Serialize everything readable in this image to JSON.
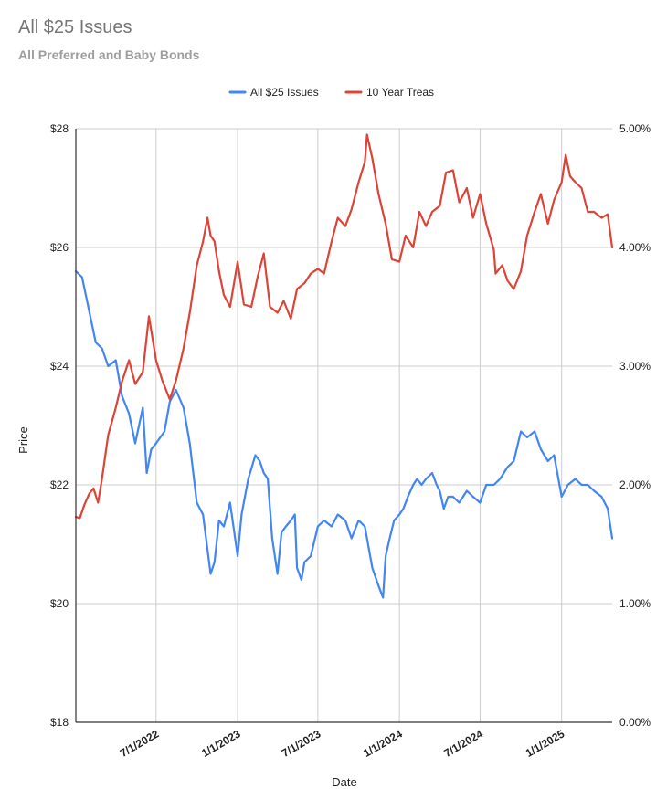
{
  "chart_data": {
    "type": "line",
    "title": "All $25 Issues",
    "subtitle": "All Preferred and Baby Bonds",
    "xlabel": "Date",
    "ylabel": "Price",
    "y2label": "",
    "xlim": [
      "2022-01-01",
      "2025-04-25"
    ],
    "ylim": [
      18,
      28
    ],
    "y2lim": [
      0,
      5
    ],
    "x_ticks": [
      "7/1/2022",
      "1/1/2023",
      "7/1/2023",
      "1/1/2024",
      "7/1/2024",
      "1/1/2025"
    ],
    "x_tick_dates": [
      "2022-07-01",
      "2023-01-01",
      "2023-07-01",
      "2024-01-01",
      "2024-07-01",
      "2025-01-01"
    ],
    "y_ticks": [
      "$18",
      "$20",
      "$22",
      "$24",
      "$26",
      "$28"
    ],
    "y_tick_values": [
      18,
      20,
      22,
      24,
      26,
      28
    ],
    "y2_ticks": [
      "0.00%",
      "1.00%",
      "2.00%",
      "3.00%",
      "4.00%",
      "5.00%"
    ],
    "y2_tick_values": [
      0,
      1,
      2,
      3,
      4,
      5
    ],
    "grid": true,
    "legend_position": "top-center",
    "series": [
      {
        "name": "All $25 Issues",
        "color": "#4285f4",
        "axis": "left",
        "points": [
          [
            "2022-01-01",
            25.6
          ],
          [
            "2022-01-15",
            25.5
          ],
          [
            "2022-02-01",
            24.9
          ],
          [
            "2022-02-15",
            24.4
          ],
          [
            "2022-03-01",
            24.3
          ],
          [
            "2022-03-15",
            24.0
          ],
          [
            "2022-04-01",
            24.1
          ],
          [
            "2022-04-15",
            23.5
          ],
          [
            "2022-05-01",
            23.2
          ],
          [
            "2022-05-15",
            22.7
          ],
          [
            "2022-06-01",
            23.3
          ],
          [
            "2022-06-10",
            22.2
          ],
          [
            "2022-06-20",
            22.6
          ],
          [
            "2022-07-01",
            22.7
          ],
          [
            "2022-07-20",
            22.9
          ],
          [
            "2022-08-01",
            23.4
          ],
          [
            "2022-08-15",
            23.6
          ],
          [
            "2022-09-01",
            23.3
          ],
          [
            "2022-09-15",
            22.7
          ],
          [
            "2022-10-01",
            21.7
          ],
          [
            "2022-10-15",
            21.5
          ],
          [
            "2022-11-01",
            20.5
          ],
          [
            "2022-11-10",
            20.7
          ],
          [
            "2022-11-20",
            21.4
          ],
          [
            "2022-12-01",
            21.3
          ],
          [
            "2022-12-15",
            21.7
          ],
          [
            "2023-01-01",
            20.8
          ],
          [
            "2023-01-10",
            21.5
          ],
          [
            "2023-01-25",
            22.1
          ],
          [
            "2023-02-10",
            22.5
          ],
          [
            "2023-02-20",
            22.4
          ],
          [
            "2023-03-01",
            22.2
          ],
          [
            "2023-03-10",
            22.1
          ],
          [
            "2023-03-20",
            21.1
          ],
          [
            "2023-04-01",
            20.5
          ],
          [
            "2023-04-10",
            21.2
          ],
          [
            "2023-04-20",
            21.3
          ],
          [
            "2023-05-01",
            21.4
          ],
          [
            "2023-05-10",
            21.5
          ],
          [
            "2023-05-15",
            20.6
          ],
          [
            "2023-05-25",
            20.4
          ],
          [
            "2023-06-01",
            20.7
          ],
          [
            "2023-06-15",
            20.8
          ],
          [
            "2023-07-01",
            21.3
          ],
          [
            "2023-07-15",
            21.4
          ],
          [
            "2023-08-01",
            21.3
          ],
          [
            "2023-08-15",
            21.5
          ],
          [
            "2023-09-01",
            21.4
          ],
          [
            "2023-09-15",
            21.1
          ],
          [
            "2023-10-01",
            21.4
          ],
          [
            "2023-10-15",
            21.3
          ],
          [
            "2023-11-01",
            20.6
          ],
          [
            "2023-11-15",
            20.3
          ],
          [
            "2023-11-25",
            20.1
          ],
          [
            "2023-12-01",
            20.8
          ],
          [
            "2023-12-10",
            21.1
          ],
          [
            "2023-12-20",
            21.4
          ],
          [
            "2024-01-01",
            21.5
          ],
          [
            "2024-01-10",
            21.6
          ],
          [
            "2024-01-20",
            21.8
          ],
          [
            "2024-02-01",
            22.0
          ],
          [
            "2024-02-10",
            22.1
          ],
          [
            "2024-02-20",
            22.0
          ],
          [
            "2024-03-01",
            22.1
          ],
          [
            "2024-03-15",
            22.2
          ],
          [
            "2024-03-25",
            22.0
          ],
          [
            "2024-04-01",
            21.9
          ],
          [
            "2024-04-10",
            21.6
          ],
          [
            "2024-04-20",
            21.8
          ],
          [
            "2024-05-01",
            21.8
          ],
          [
            "2024-05-15",
            21.7
          ],
          [
            "2024-06-01",
            21.9
          ],
          [
            "2024-06-15",
            21.8
          ],
          [
            "2024-07-01",
            21.7
          ],
          [
            "2024-07-15",
            22.0
          ],
          [
            "2024-08-01",
            22.0
          ],
          [
            "2024-08-15",
            22.1
          ],
          [
            "2024-09-01",
            22.3
          ],
          [
            "2024-09-15",
            22.4
          ],
          [
            "2024-10-01",
            22.9
          ],
          [
            "2024-10-15",
            22.8
          ],
          [
            "2024-11-01",
            22.9
          ],
          [
            "2024-11-15",
            22.6
          ],
          [
            "2024-12-01",
            22.4
          ],
          [
            "2024-12-15",
            22.5
          ],
          [
            "2025-01-01",
            21.8
          ],
          [
            "2025-01-15",
            22.0
          ],
          [
            "2025-02-01",
            22.1
          ],
          [
            "2025-02-15",
            22.0
          ],
          [
            "2025-03-01",
            22.0
          ],
          [
            "2025-03-15",
            21.9
          ],
          [
            "2025-04-01",
            21.8
          ],
          [
            "2025-04-15",
            21.6
          ],
          [
            "2025-04-25",
            21.1
          ]
        ]
      },
      {
        "name": "10 Year Treas",
        "color": "#db4437",
        "axis": "right",
        "points": [
          [
            "2022-01-01",
            1.73
          ],
          [
            "2022-01-10",
            1.72
          ],
          [
            "2022-01-20",
            1.83
          ],
          [
            "2022-02-01",
            1.93
          ],
          [
            "2022-02-10",
            1.97
          ],
          [
            "2022-02-20",
            1.85
          ],
          [
            "2022-03-01",
            2.05
          ],
          [
            "2022-03-15",
            2.42
          ],
          [
            "2022-04-01",
            2.65
          ],
          [
            "2022-04-15",
            2.87
          ],
          [
            "2022-05-01",
            3.05
          ],
          [
            "2022-05-15",
            2.85
          ],
          [
            "2022-06-01",
            2.95
          ],
          [
            "2022-06-15",
            3.42
          ],
          [
            "2022-07-01",
            3.05
          ],
          [
            "2022-07-15",
            2.88
          ],
          [
            "2022-08-01",
            2.72
          ],
          [
            "2022-08-15",
            2.88
          ],
          [
            "2022-09-01",
            3.15
          ],
          [
            "2022-09-15",
            3.45
          ],
          [
            "2022-10-01",
            3.85
          ],
          [
            "2022-10-15",
            4.05
          ],
          [
            "2022-10-25",
            4.25
          ],
          [
            "2022-11-01",
            4.1
          ],
          [
            "2022-11-10",
            4.05
          ],
          [
            "2022-11-20",
            3.8
          ],
          [
            "2022-12-01",
            3.6
          ],
          [
            "2022-12-15",
            3.5
          ],
          [
            "2023-01-01",
            3.88
          ],
          [
            "2023-01-15",
            3.52
          ],
          [
            "2023-02-01",
            3.5
          ],
          [
            "2023-02-15",
            3.75
          ],
          [
            "2023-03-01",
            3.95
          ],
          [
            "2023-03-15",
            3.5
          ],
          [
            "2023-04-01",
            3.45
          ],
          [
            "2023-04-15",
            3.55
          ],
          [
            "2023-05-01",
            3.4
          ],
          [
            "2023-05-15",
            3.65
          ],
          [
            "2023-06-01",
            3.7
          ],
          [
            "2023-06-15",
            3.78
          ],
          [
            "2023-07-01",
            3.82
          ],
          [
            "2023-07-15",
            3.78
          ],
          [
            "2023-08-01",
            4.05
          ],
          [
            "2023-08-15",
            4.25
          ],
          [
            "2023-09-01",
            4.18
          ],
          [
            "2023-09-15",
            4.32
          ],
          [
            "2023-10-01",
            4.55
          ],
          [
            "2023-10-15",
            4.72
          ],
          [
            "2023-10-20",
            4.95
          ],
          [
            "2023-11-01",
            4.75
          ],
          [
            "2023-11-15",
            4.45
          ],
          [
            "2023-12-01",
            4.2
          ],
          [
            "2023-12-15",
            3.9
          ],
          [
            "2024-01-01",
            3.88
          ],
          [
            "2024-01-15",
            4.1
          ],
          [
            "2024-02-01",
            4.0
          ],
          [
            "2024-02-15",
            4.3
          ],
          [
            "2024-03-01",
            4.18
          ],
          [
            "2024-03-15",
            4.3
          ],
          [
            "2024-04-01",
            4.35
          ],
          [
            "2024-04-15",
            4.63
          ],
          [
            "2024-05-01",
            4.65
          ],
          [
            "2024-05-15",
            4.38
          ],
          [
            "2024-06-01",
            4.5
          ],
          [
            "2024-06-15",
            4.25
          ],
          [
            "2024-07-01",
            4.45
          ],
          [
            "2024-07-15",
            4.2
          ],
          [
            "2024-08-01",
            3.98
          ],
          [
            "2024-08-05",
            3.78
          ],
          [
            "2024-08-20",
            3.85
          ],
          [
            "2024-09-01",
            3.72
          ],
          [
            "2024-09-15",
            3.65
          ],
          [
            "2024-10-01",
            3.8
          ],
          [
            "2024-10-15",
            4.1
          ],
          [
            "2024-11-01",
            4.3
          ],
          [
            "2024-11-15",
            4.45
          ],
          [
            "2024-12-01",
            4.2
          ],
          [
            "2024-12-15",
            4.4
          ],
          [
            "2025-01-01",
            4.55
          ],
          [
            "2025-01-10",
            4.78
          ],
          [
            "2025-01-20",
            4.6
          ],
          [
            "2025-02-01",
            4.55
          ],
          [
            "2025-02-15",
            4.5
          ],
          [
            "2025-03-01",
            4.3
          ],
          [
            "2025-03-15",
            4.3
          ],
          [
            "2025-04-01",
            4.25
          ],
          [
            "2025-04-15",
            4.28
          ],
          [
            "2025-04-25",
            4.0
          ]
        ]
      }
    ]
  }
}
